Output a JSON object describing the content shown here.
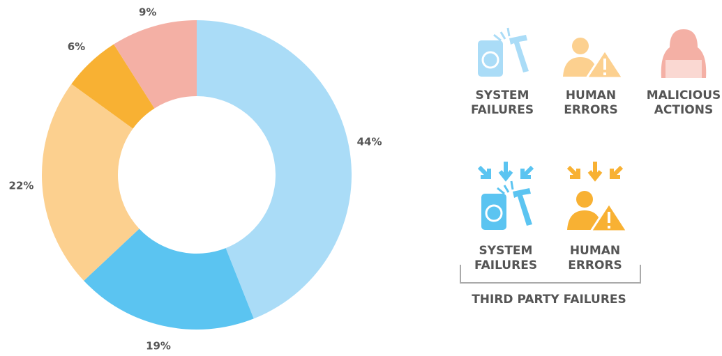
{
  "chart_data": {
    "type": "pie",
    "values": [
      44,
      19,
      22,
      6,
      9
    ],
    "value_labels": [
      "44%",
      "19%",
      "22%",
      "6%",
      "9%"
    ],
    "colors": [
      "#aadcf7",
      "#5bc4f1",
      "#fcd08f",
      "#f8b133",
      "#f4b0a5"
    ],
    "legend": [
      {
        "lines": [
          "SYSTEM",
          "FAILURES"
        ],
        "color": "#aadcf7"
      },
      {
        "lines": [
          "HUMAN",
          "ERRORS"
        ],
        "color": "#fcd08f"
      },
      {
        "lines": [
          "MALICIOUS",
          "ACTIONS"
        ],
        "color": "#f4b0a5"
      },
      {
        "lines": [
          "SYSTEM",
          "FAILURES"
        ],
        "color": "#5bc4f1"
      },
      {
        "lines": [
          "HUMAN",
          "ERRORS"
        ],
        "color": "#f8b133"
      }
    ],
    "group_label": "THIRD PARTY FAILURES"
  }
}
